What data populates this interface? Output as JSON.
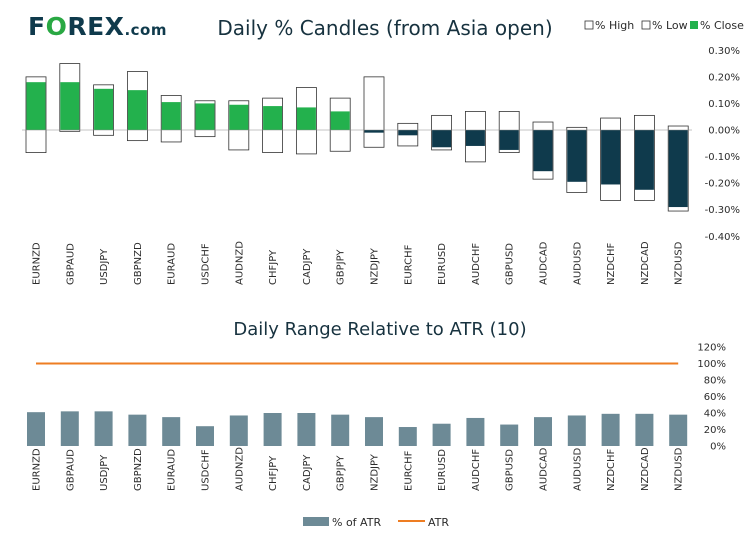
{
  "brand": {
    "name_pre": "F",
    "name_o": "O",
    "name_post": "REX",
    "domain": ".com"
  },
  "colors": {
    "up": "#23b14d",
    "down": "#0f3a4c",
    "range_outline": "#333333",
    "atr_bar": "#6d8a96",
    "atr_line": "#ee7d22",
    "brand": "#0f3a4c"
  },
  "chart_data": [
    {
      "type": "candlestick",
      "title": "Daily % Candles (from Asia open)",
      "legend": [
        "% High",
        "% Low",
        "% Close"
      ],
      "categories": [
        "EURNZD",
        "GBPAUD",
        "USDJPY",
        "GBPNZD",
        "EURAUD",
        "USDCHF",
        "AUDNZD",
        "CHFJPY",
        "CADJPY",
        "GBPJPY",
        "NZDJPY",
        "EURCHF",
        "EURUSD",
        "AUDCHF",
        "GBPUSD",
        "AUDCAD",
        "AUDUSD",
        "NZDCHF",
        "NZDCAD",
        "NZDUSD"
      ],
      "high": [
        0.2,
        0.25,
        0.17,
        0.22,
        0.13,
        0.11,
        0.11,
        0.12,
        0.16,
        0.12,
        0.2,
        0.025,
        0.055,
        0.07,
        0.07,
        0.03,
        0.01,
        0.045,
        0.055,
        0.015
      ],
      "low": [
        -0.085,
        -0.005,
        -0.02,
        -0.04,
        -0.045,
        -0.025,
        -0.075,
        -0.085,
        -0.09,
        -0.08,
        -0.065,
        -0.06,
        -0.075,
        -0.12,
        -0.085,
        -0.185,
        -0.235,
        -0.265,
        -0.265,
        -0.305
      ],
      "close": [
        0.18,
        0.18,
        0.155,
        0.15,
        0.105,
        0.1,
        0.095,
        0.09,
        0.085,
        0.07,
        -0.01,
        -0.02,
        -0.065,
        -0.06,
        -0.075,
        -0.155,
        -0.195,
        -0.205,
        -0.225,
        -0.29
      ],
      "y_ticks": [
        "0.30%",
        "0.20%",
        "0.10%",
        "0.00%",
        "-0.10%",
        "-0.20%",
        "-0.30%",
        "-0.40%"
      ],
      "ylim": [
        -0.4,
        0.3
      ]
    },
    {
      "type": "bar",
      "title": "Daily Range Relative to ATR (10)",
      "categories": [
        "EURNZD",
        "GBPAUD",
        "USDJPY",
        "GBPNZD",
        "EURAUD",
        "USDCHF",
        "AUDNZD",
        "CHFJPY",
        "CADJPY",
        "GBPJPY",
        "NZDJPY",
        "EURCHF",
        "EURUSD",
        "AUDCHF",
        "GBPUSD",
        "AUDCAD",
        "AUDUSD",
        "NZDCHF",
        "NZDCAD",
        "NZDUSD"
      ],
      "series": [
        {
          "name": "% of ATR",
          "values": [
            41,
            42,
            42,
            38,
            35,
            24,
            37,
            40,
            40,
            38,
            35,
            23,
            27,
            34,
            26,
            35,
            37,
            39,
            39,
            38
          ]
        },
        {
          "name": "ATR",
          "values": [
            100,
            100,
            100,
            100,
            100,
            100,
            100,
            100,
            100,
            100,
            100,
            100,
            100,
            100,
            100,
            100,
            100,
            100,
            100,
            100
          ]
        }
      ],
      "y_ticks": [
        "120%",
        "100%",
        "80%",
        "60%",
        "40%",
        "20%",
        "0%"
      ],
      "ylim": [
        0,
        120
      ]
    }
  ]
}
